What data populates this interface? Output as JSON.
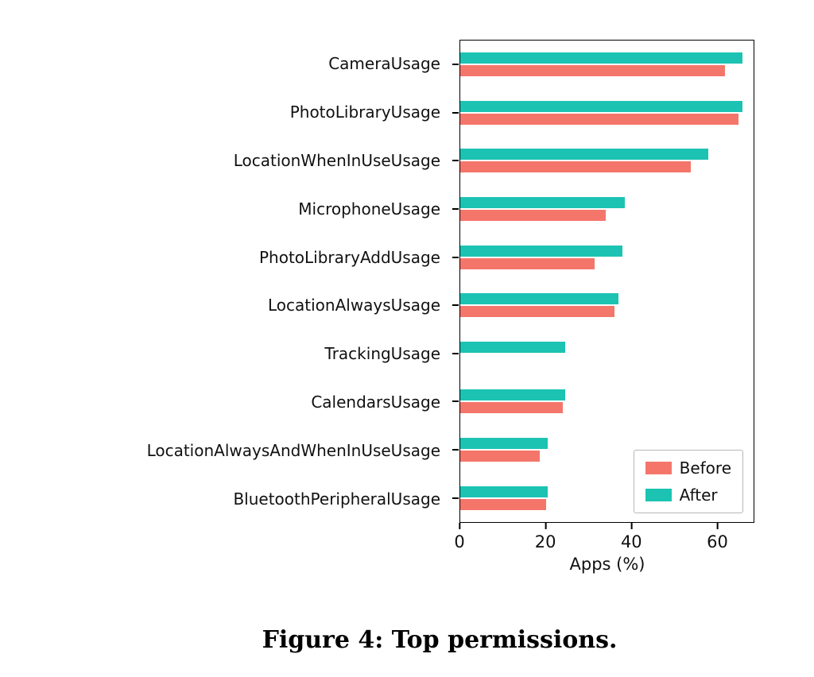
{
  "caption": "Figure 4: Top permissions.",
  "chart_data": {
    "type": "bar",
    "orientation": "horizontal",
    "title": "",
    "xlabel": "Apps (%)",
    "ylabel": "",
    "xlim": [
      0,
      68.6
    ],
    "xticks": [
      0,
      20,
      40,
      60
    ],
    "grid": false,
    "legend_position": "lower right",
    "categories": [
      "CameraUsage",
      "PhotoLibraryUsage",
      "LocationWhenInUseUsage",
      "MicrophoneUsage",
      "PhotoLibraryAddUsage",
      "LocationAlwaysUsage",
      "TrackingUsage",
      "CalendarsUsage",
      "LocationAlwaysAndWhenInUseUsage",
      "BluetoothPeripheralUsage"
    ],
    "series": [
      {
        "name": "Before",
        "color": "#f4766b",
        "values": [
          62,
          65,
          54,
          34,
          31.5,
          36,
          0,
          24,
          18.5,
          20
        ]
      },
      {
        "name": "After",
        "color": "#1cc3b3",
        "values": [
          66,
          66,
          58,
          38.5,
          38,
          37,
          24.5,
          24.5,
          20.5,
          20.5
        ]
      }
    ]
  }
}
